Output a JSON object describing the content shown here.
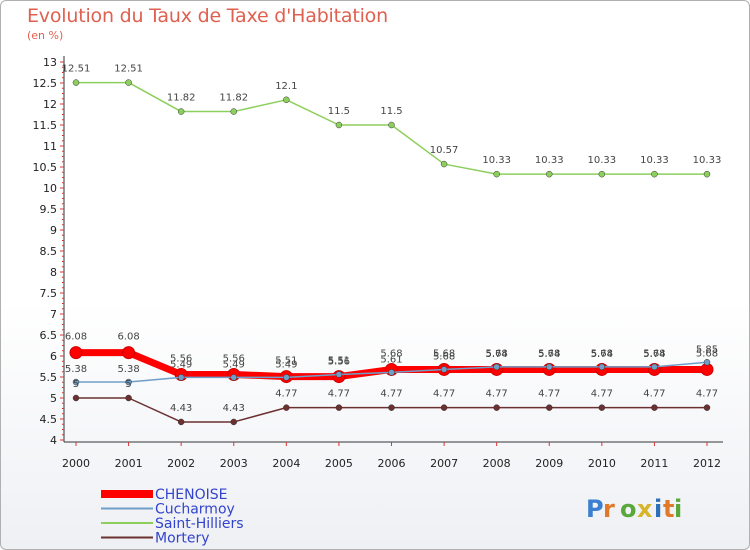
{
  "title": "Evolution du Taux de Taxe d'Habitation",
  "subtitle": "(en %)",
  "logo_text": "Proxiti",
  "chart_data": {
    "type": "line",
    "title": "Evolution du Taux de Taxe d'Habitation",
    "ylabel": "(en %)",
    "xlabel": "",
    "x": [
      "2000",
      "2001",
      "2002",
      "2003",
      "2004",
      "2005",
      "2006",
      "2007",
      "2008",
      "2009",
      "2010",
      "2011",
      "2012"
    ],
    "ylim": [
      4,
      13
    ],
    "yticks": [
      "4",
      "4.5",
      "5",
      "5.5",
      "6",
      "6.5",
      "7",
      "7.5",
      "8",
      "8.5",
      "9",
      "9.5",
      "10",
      "10.5",
      "11",
      "11.5",
      "12",
      "12.5",
      "13"
    ],
    "grid": false,
    "legend_position": "bottom-left",
    "series": [
      {
        "name": "CHENOISE",
        "color": "#ff0000",
        "values": [
          6.08,
          6.08,
          5.56,
          5.56,
          5.51,
          5.51,
          5.68,
          5.68,
          5.68,
          5.68,
          5.68,
          5.68,
          5.68
        ],
        "labels": [
          "6.08",
          "6.08",
          "5.56",
          "5.56",
          "5.51",
          "5.51",
          "5.68",
          "5.68",
          "5.68",
          "5.68",
          "5.68",
          "5.68",
          "5.68"
        ]
      },
      {
        "name": "Cucharmoy",
        "color": "#6f9fc8",
        "values": [
          5.38,
          5.38,
          5.49,
          5.49,
          5.49,
          5.56,
          5.61,
          5.68,
          5.74,
          5.74,
          5.74,
          5.74,
          5.85
        ],
        "labels": [
          "5.38",
          "5.38",
          "5.49",
          "5.49",
          "5.49",
          "5.56",
          "5.61",
          "5.68",
          "5.74",
          "5.74",
          "5.74",
          "5.74",
          "5.85"
        ]
      },
      {
        "name": "Saint-Hilliers",
        "color": "#8ccf5c",
        "values": [
          12.51,
          12.51,
          11.82,
          11.82,
          12.1,
          11.5,
          11.5,
          10.57,
          10.33,
          10.33,
          10.33,
          10.33,
          10.33
        ],
        "labels": [
          "12.51",
          "12.51",
          "11.82",
          "11.82",
          "12.1",
          "11.5",
          "11.5",
          "10.57",
          "10.33",
          "10.33",
          "10.33",
          "10.33",
          "10.33"
        ]
      },
      {
        "name": "Mortery",
        "color": "#6b3030",
        "values": [
          5,
          5,
          4.43,
          4.43,
          4.77,
          4.77,
          4.77,
          4.77,
          4.77,
          4.77,
          4.77,
          4.77,
          4.77
        ],
        "labels": [
          "5",
          "5",
          "4.43",
          "4.43",
          "4.77",
          "4.77",
          "4.77",
          "4.77",
          "4.77",
          "4.77",
          "4.77",
          "4.77",
          "4.77"
        ]
      }
    ]
  }
}
